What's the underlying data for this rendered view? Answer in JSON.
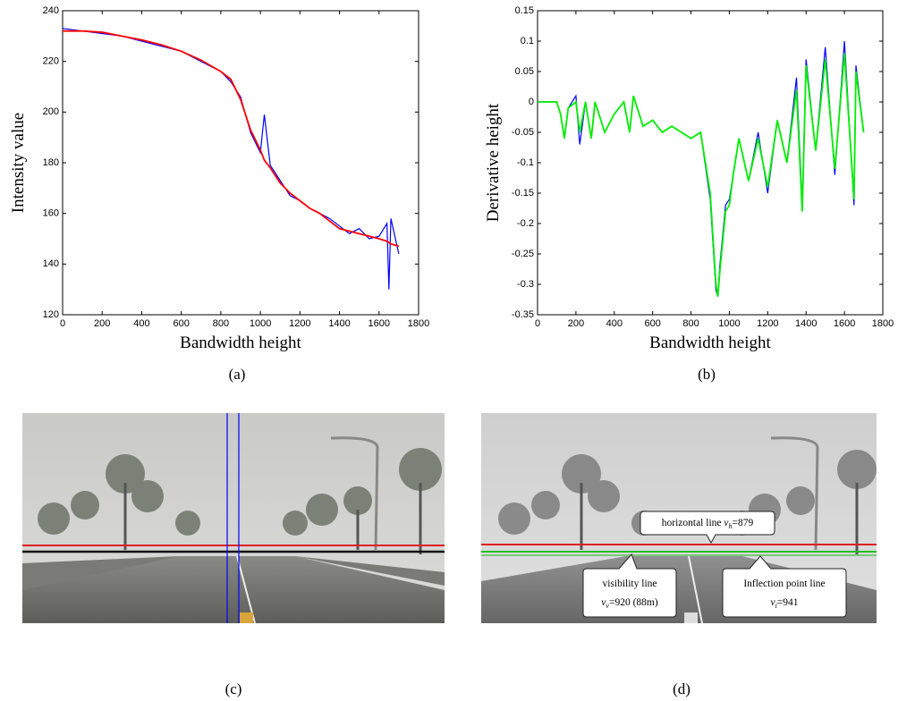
{
  "chart_data": [
    {
      "type": "line",
      "caption": "(a)",
      "x_label": "Bandwidth height",
      "y_label": "Intensity value",
      "x": [
        0,
        100,
        200,
        300,
        400,
        500,
        600,
        700,
        800,
        850,
        900,
        950,
        1000,
        1020,
        1050,
        1100,
        1150,
        1200,
        1250,
        1300,
        1350,
        1400,
        1450,
        1500,
        1550,
        1600,
        1640,
        1650,
        1660,
        1700
      ],
      "series": [
        {
          "color": "#0000ff",
          "values": [
            233,
            232,
            231,
            230,
            228,
            226,
            224,
            220,
            216,
            212,
            206,
            192,
            184,
            199,
            179,
            173,
            167,
            165,
            162,
            160,
            158,
            155,
            152,
            154,
            150,
            151,
            156,
            130,
            158,
            144
          ]
        },
        {
          "color": "#ff0000",
          "values": [
            232,
            232,
            231.5,
            230,
            228.5,
            226.5,
            224,
            220.5,
            216,
            213,
            205,
            193,
            185,
            181,
            178,
            172,
            168,
            165,
            162,
            160,
            157,
            154,
            153,
            152,
            151,
            150,
            149,
            148.5,
            148,
            147
          ]
        }
      ],
      "xlim": [
        0,
        1800
      ],
      "xticks": [
        0,
        200,
        400,
        600,
        800,
        1000,
        1200,
        1400,
        1600,
        1800
      ],
      "ylim": [
        120,
        240
      ],
      "yticks": [
        120,
        140,
        160,
        180,
        200,
        220,
        240
      ]
    },
    {
      "type": "line",
      "caption": "(b)",
      "x_label": "Bandwidth height",
      "y_label": "Derivative height",
      "x": [
        0,
        100,
        120,
        140,
        160,
        200,
        220,
        250,
        280,
        300,
        350,
        400,
        450,
        480,
        500,
        550,
        600,
        650,
        700,
        800,
        850,
        900,
        930,
        940,
        950,
        980,
        1000,
        1020,
        1050,
        1100,
        1150,
        1200,
        1250,
        1300,
        1350,
        1380,
        1400,
        1450,
        1500,
        1550,
        1600,
        1650,
        1660,
        1700
      ],
      "series": [
        {
          "color": "#0000ff",
          "values": [
            0,
            0,
            -0.02,
            -0.06,
            -0.01,
            0.01,
            -0.07,
            0,
            -0.06,
            0,
            -0.05,
            -0.02,
            0,
            -0.05,
            0.01,
            -0.04,
            -0.03,
            -0.05,
            -0.04,
            -0.06,
            -0.05,
            -0.16,
            -0.31,
            -0.32,
            -0.27,
            -0.17,
            -0.16,
            -0.12,
            -0.06,
            -0.13,
            -0.05,
            -0.15,
            -0.03,
            -0.1,
            0.04,
            -0.17,
            0.07,
            -0.08,
            0.09,
            -0.12,
            0.1,
            -0.17,
            0.06,
            -0.05
          ]
        },
        {
          "color": "#00ee00",
          "values": [
            0,
            0,
            -0.02,
            -0.06,
            -0.01,
            0,
            -0.05,
            0,
            -0.06,
            0,
            -0.05,
            -0.02,
            0,
            -0.05,
            0.01,
            -0.04,
            -0.03,
            -0.05,
            -0.04,
            -0.06,
            -0.05,
            -0.15,
            -0.3,
            -0.32,
            -0.28,
            -0.18,
            -0.17,
            -0.12,
            -0.06,
            -0.13,
            -0.06,
            -0.14,
            -0.03,
            -0.1,
            0.02,
            -0.18,
            0.06,
            -0.08,
            0.07,
            -0.11,
            0.08,
            -0.16,
            0.05,
            -0.05
          ]
        }
      ],
      "xlim": [
        0,
        1800
      ],
      "xticks": [
        0,
        200,
        400,
        600,
        800,
        1000,
        1200,
        1400,
        1600,
        1800
      ],
      "ylim": [
        -0.35,
        0.15
      ],
      "yticks": [
        -0.35,
        -0.3,
        -0.25,
        -0.2,
        -0.15,
        -0.1,
        -0.05,
        0,
        0.05,
        0.1,
        0.15
      ]
    }
  ],
  "photos": [
    {
      "caption": "(c)"
    },
    {
      "caption": "(d)",
      "annotations": [
        {
          "lines": [
            {
              "text": "horizontal line ",
              "var": "v",
              "sub": "h",
              "rest": "=879"
            }
          ]
        },
        {
          "lines": [
            {
              "text": "visibility line"
            },
            {
              "var": "v",
              "sub": "v",
              "rest": "=920 (88m)"
            }
          ]
        },
        {
          "lines": [
            {
              "text": "Inflection point line"
            },
            {
              "var": "v",
              "sub": "i",
              "rest": "=941"
            }
          ]
        }
      ]
    }
  ]
}
